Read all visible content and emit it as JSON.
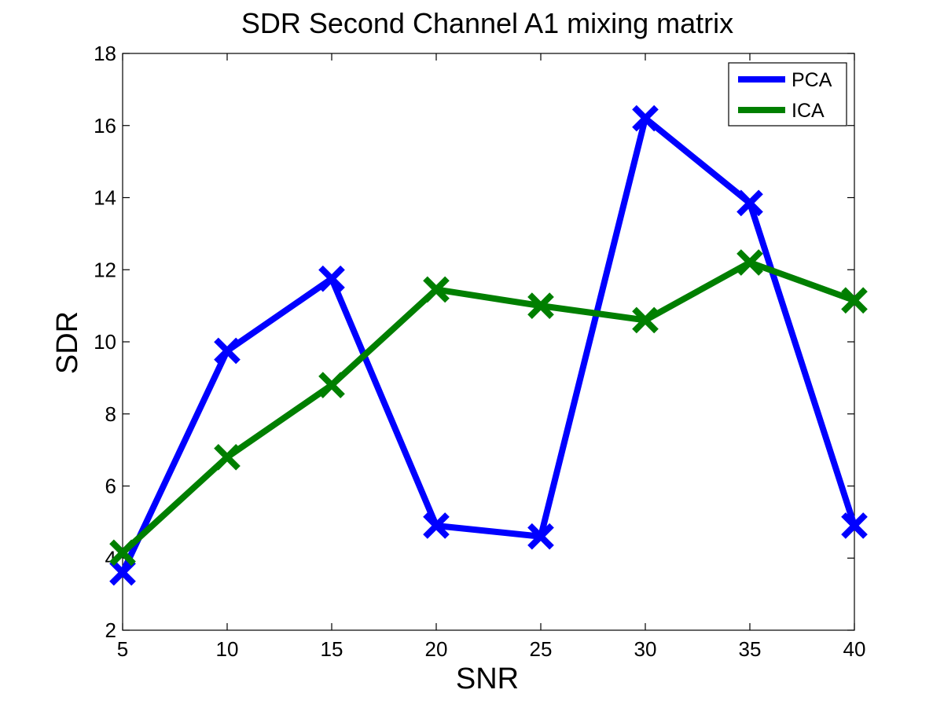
{
  "chart_data": {
    "type": "line",
    "title": "SDR Second Channel A1 mixing matrix",
    "xlabel": "SNR",
    "ylabel": "SDR",
    "x": [
      5,
      10,
      15,
      20,
      25,
      30,
      35,
      40
    ],
    "xlim": [
      5,
      40
    ],
    "ylim": [
      2,
      18
    ],
    "xticks": [
      "5",
      "10",
      "15",
      "20",
      "25",
      "30",
      "35",
      "40"
    ],
    "yticks": [
      "2",
      "4",
      "6",
      "8",
      "10",
      "12",
      "14",
      "16",
      "18"
    ],
    "ytick_values": [
      2,
      4,
      6,
      8,
      10,
      12,
      14,
      16,
      18
    ],
    "grid": false,
    "legend_position": "top-right",
    "marker": "x",
    "series": [
      {
        "name": "PCA",
        "color": "#0000ff",
        "values": [
          3.6,
          9.75,
          11.75,
          4.9,
          4.6,
          16.2,
          13.85,
          4.9
        ]
      },
      {
        "name": "ICA",
        "color": "#007f00",
        "values": [
          4.15,
          6.8,
          8.8,
          11.45,
          11.0,
          10.6,
          12.2,
          11.15
        ]
      }
    ]
  }
}
